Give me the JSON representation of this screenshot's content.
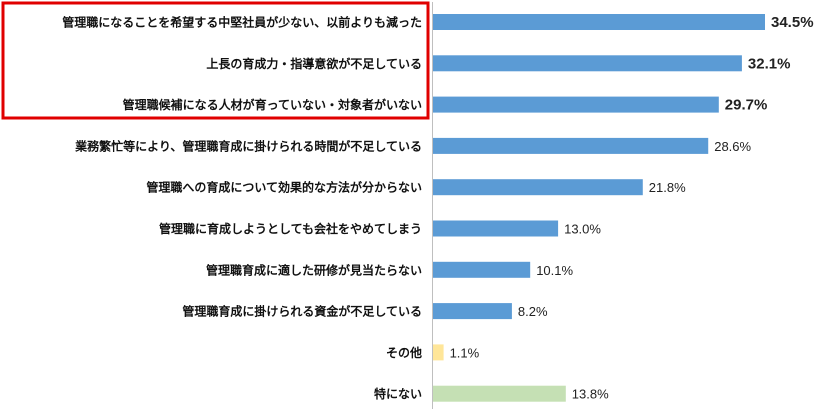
{
  "chart_data": {
    "type": "bar",
    "orientation": "horizontal",
    "categories": [
      "管理職になることを希望する中堅社員が少ない、以前よりも減った",
      "上長の育成力・指導意欲が不足している",
      "管理職候補になる人材が育っていない・対象者がいない",
      "業務繁忙等により、管理職育成に掛けられる時間が不足している",
      "管理職への育成について効果的な方法が分からない",
      "管理職に育成しようとしても会社をやめてしまう",
      "管理職育成に適した研修が見当たらない",
      "管理職育成に掛けられる資金が不足している",
      "その他",
      "特にない"
    ],
    "values": [
      34.5,
      32.1,
      29.7,
      28.6,
      21.8,
      13.0,
      10.1,
      8.2,
      1.1,
      13.8
    ],
    "value_labels": [
      "34.5%",
      "32.1%",
      "29.7%",
      "28.6%",
      "21.8%",
      "13.0%",
      "10.1%",
      "8.2%",
      "1.1%",
      "13.8%"
    ],
    "bar_colors": [
      "#5b9bd5",
      "#5b9bd5",
      "#5b9bd5",
      "#5b9bd5",
      "#5b9bd5",
      "#5b9bd5",
      "#5b9bd5",
      "#5b9bd5",
      "#ffe699",
      "#c5e0b4"
    ],
    "highlighted_indices": [
      0,
      1,
      2
    ],
    "highlight_color": "#e00000",
    "xlim": [
      0,
      40
    ],
    "grid": false,
    "legend": "none"
  }
}
